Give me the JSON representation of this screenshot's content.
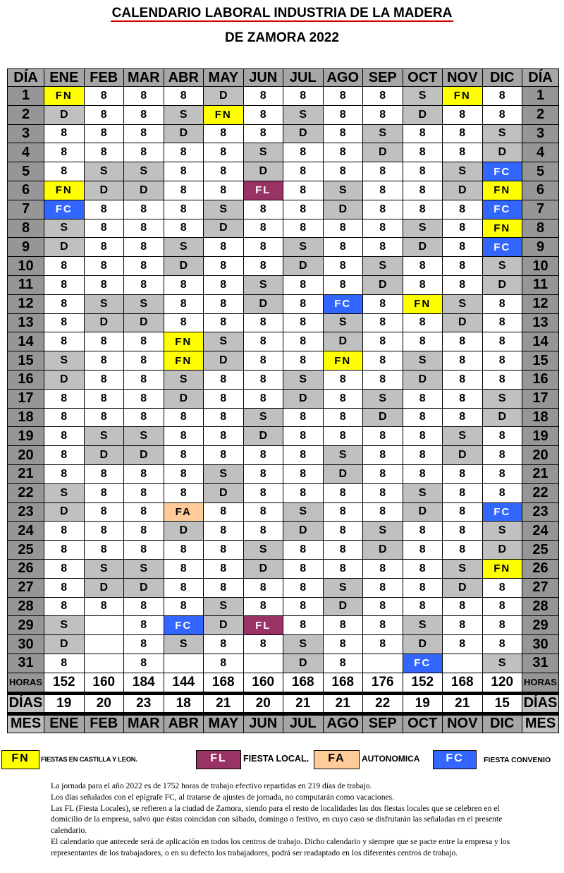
{
  "title": {
    "line1": "CALENDARIO LABORAL INDUSTRIA DE LA MADERA",
    "line2": "DE ZAMORA 2022"
  },
  "headers": {
    "day": "DÍA",
    "months": [
      "ENE",
      "FEB",
      "MAR",
      "ABR",
      "MAY",
      "JUN",
      "JUL",
      "AGO",
      "SEP",
      "OCT",
      "NOV",
      "DIC"
    ],
    "hours_label": "HORAS",
    "days_label": "DÍAS",
    "month_label": "MES"
  },
  "rows": [
    [
      "FN",
      "8",
      "8",
      "8",
      "D",
      "8",
      "8",
      "8",
      "8",
      "S",
      "FN",
      "8"
    ],
    [
      "D",
      "8",
      "8",
      "S",
      "FN",
      "8",
      "S",
      "8",
      "8",
      "D",
      "8",
      "8"
    ],
    [
      "8",
      "8",
      "8",
      "D",
      "8",
      "8",
      "D",
      "8",
      "S",
      "8",
      "8",
      "S"
    ],
    [
      "8",
      "8",
      "8",
      "8",
      "8",
      "S",
      "8",
      "8",
      "D",
      "8",
      "8",
      "D"
    ],
    [
      "8",
      "S",
      "S",
      "8",
      "8",
      "D",
      "8",
      "8",
      "8",
      "8",
      "S",
      "FC"
    ],
    [
      "FN",
      "D",
      "D",
      "8",
      "8",
      "FL",
      "8",
      "S",
      "8",
      "8",
      "D",
      "FN"
    ],
    [
      "FC",
      "8",
      "8",
      "8",
      "S",
      "8",
      "8",
      "D",
      "8",
      "8",
      "8",
      "FC"
    ],
    [
      "S",
      "8",
      "8",
      "8",
      "D",
      "8",
      "8",
      "8",
      "8",
      "S",
      "8",
      "FN"
    ],
    [
      "D",
      "8",
      "8",
      "S",
      "8",
      "8",
      "S",
      "8",
      "8",
      "D",
      "8",
      "FC"
    ],
    [
      "8",
      "8",
      "8",
      "D",
      "8",
      "8",
      "D",
      "8",
      "S",
      "8",
      "8",
      "S"
    ],
    [
      "8",
      "8",
      "8",
      "8",
      "8",
      "S",
      "8",
      "8",
      "D",
      "8",
      "8",
      "D"
    ],
    [
      "8",
      "S",
      "S",
      "8",
      "8",
      "D",
      "8",
      "FC",
      "8",
      "FN",
      "S",
      "8"
    ],
    [
      "8",
      "D",
      "D",
      "8",
      "8",
      "8",
      "8",
      "S",
      "8",
      "8",
      "D",
      "8"
    ],
    [
      "8",
      "8",
      "8",
      "FN",
      "S",
      "8",
      "8",
      "D",
      "8",
      "8",
      "8",
      "8"
    ],
    [
      "S",
      "8",
      "8",
      "FN",
      "D",
      "8",
      "8",
      "FN",
      "8",
      "S",
      "8",
      "8"
    ],
    [
      "D",
      "8",
      "8",
      "S",
      "8",
      "8",
      "S",
      "8",
      "8",
      "D",
      "8",
      "8"
    ],
    [
      "8",
      "8",
      "8",
      "D",
      "8",
      "8",
      "D",
      "8",
      "S",
      "8",
      "8",
      "S"
    ],
    [
      "8",
      "8",
      "8",
      "8",
      "8",
      "S",
      "8",
      "8",
      "D",
      "8",
      "8",
      "D"
    ],
    [
      "8",
      "S",
      "S",
      "8",
      "8",
      "D",
      "8",
      "8",
      "8",
      "8",
      "S",
      "8"
    ],
    [
      "8",
      "D",
      "D",
      "8",
      "8",
      "8",
      "8",
      "S",
      "8",
      "8",
      "D",
      "8"
    ],
    [
      "8",
      "8",
      "8",
      "8",
      "S",
      "8",
      "8",
      "D",
      "8",
      "8",
      "8",
      "8"
    ],
    [
      "S",
      "8",
      "8",
      "8",
      "D",
      "8",
      "8",
      "8",
      "8",
      "S",
      "8",
      "8"
    ],
    [
      "D",
      "8",
      "8",
      "FA",
      "8",
      "8",
      "S",
      "8",
      "8",
      "D",
      "8",
      "FC"
    ],
    [
      "8",
      "8",
      "8",
      "D",
      "8",
      "8",
      "D",
      "8",
      "S",
      "8",
      "8",
      "S"
    ],
    [
      "8",
      "8",
      "8",
      "8",
      "8",
      "S",
      "8",
      "8",
      "D",
      "8",
      "8",
      "D"
    ],
    [
      "8",
      "S",
      "S",
      "8",
      "8",
      "D",
      "8",
      "8",
      "8",
      "8",
      "S",
      "FN"
    ],
    [
      "8",
      "D",
      "D",
      "8",
      "8",
      "8",
      "8",
      "S",
      "8",
      "8",
      "D",
      "8"
    ],
    [
      "8",
      "8",
      "8",
      "8",
      "S",
      "8",
      "8",
      "D",
      "8",
      "8",
      "8",
      "8"
    ],
    [
      "S",
      "",
      "8",
      "FC",
      "D",
      "FL",
      "8",
      "8",
      "8",
      "S",
      "8",
      "8"
    ],
    [
      "D",
      "",
      "8",
      "S",
      "8",
      "8",
      "S",
      "8",
      "8",
      "D",
      "8",
      "8"
    ],
    [
      "8",
      "",
      "8",
      "",
      "8",
      "",
      "D",
      "8",
      "",
      "FC",
      "",
      "S"
    ]
  ],
  "hours": [
    "152",
    "160",
    "184",
    "144",
    "168",
    "160",
    "168",
    "168",
    "176",
    "152",
    "168",
    "120"
  ],
  "days": [
    "19",
    "20",
    "23",
    "18",
    "21",
    "20",
    "21",
    "21",
    "22",
    "19",
    "21",
    "15"
  ],
  "colors": {
    "FN": "#ffff00",
    "FL": "#993366",
    "FA": "#ffcc99",
    "FC": "#3366ff",
    "weekend": "#c0c0c0",
    "header": "#a6a6a6"
  },
  "legend": [
    {
      "code": "FN",
      "label": "FIESTAS EN CASTILLA Y LEON."
    },
    {
      "code": "FL",
      "label": "FIESTA LOCAL."
    },
    {
      "code": "FA",
      "label": "AUTONOMICA"
    },
    {
      "code": "FC",
      "label": "FIESTA CONVENIO"
    }
  ],
  "notes": [
    "La jornada para el año 2022 es de 1752 horas de trabajo efectivo repartidas en 219 días de trabajo.",
    "Los días señalados con el epígrafe FC, al tratarse de ajustes de jornada, no computarán como vacaciones.",
    "Las FL (Fiesta Locales), se refieren a la ciudad de Zamora, siendo para el resto de localidades las dos fiestas locales que se celebren en el domicilio de la empresa, salvo que éstas coincidan con sábado, domingo o festivo, en cuyo caso se disfrutarán las señaladas en el presente calendario.",
    "El calendario que antecede será de aplicación en todos los centros de trabajo. Dicho calendario y siempre que se pacte entre la empresa y los representantes de los trabajadores, o en su defecto los trabajadores, podrá ser readaptado en los diferentes centros de trabajo."
  ]
}
